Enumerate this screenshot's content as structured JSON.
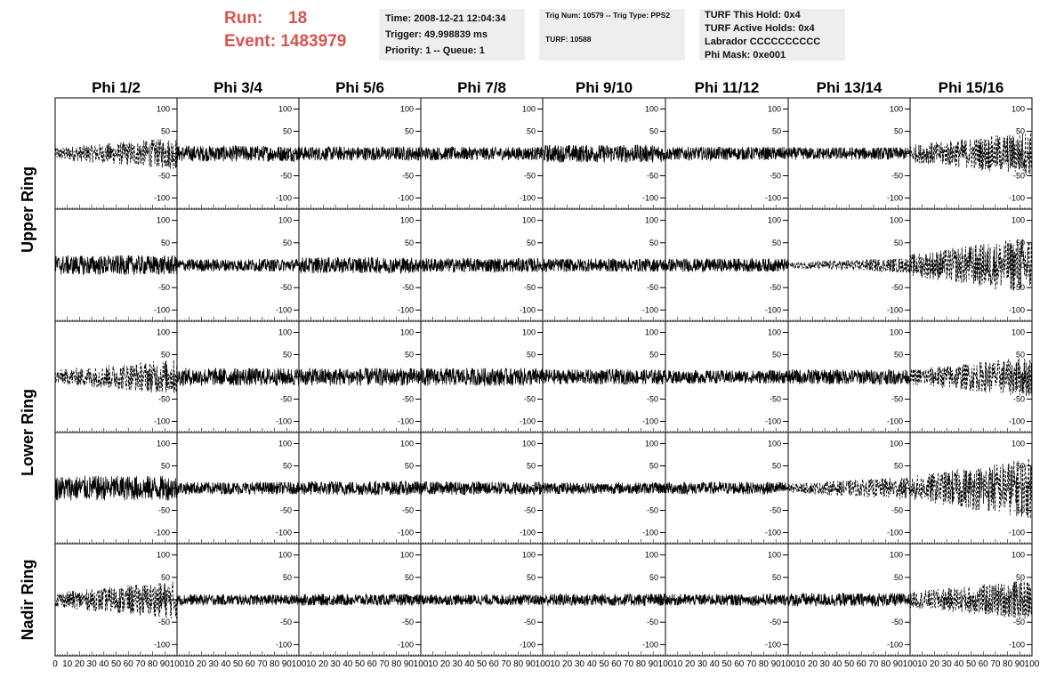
{
  "header": {
    "run_label": "Run:",
    "run_value": "18",
    "event_label": "Event:",
    "event_value": "1483979",
    "time_line": "Time: 2008-12-21 12:04:34",
    "trigger_line": "Trigger: 49.998839 ms",
    "priority_line": "Priority: 1 -- Queue: 1",
    "trig_num_line": "Trig Num: 10579 -- Trig Type: PPS2",
    "turf_line": "TURF: 10588",
    "turf_this_hold": "TURF This Hold: 0x4",
    "turf_active_holds": "TURF Active Holds: 0x4",
    "labrador": "Labrador CCCCCCCCCC",
    "phi_mask": "Phi Mask: 0xe001"
  },
  "chart_data": {
    "type": "line",
    "columns": [
      "Phi 1/2",
      "Phi 3/4",
      "Phi 5/6",
      "Phi 7/8",
      "Phi 9/10",
      "Phi 11/12",
      "Phi 13/14",
      "Phi 15/16"
    ],
    "ring_labels": [
      {
        "name": "Upper Ring",
        "rows": [
          0,
          1
        ]
      },
      {
        "name": "Lower Ring",
        "rows": [
          2,
          3
        ]
      },
      {
        "name": "Nadir Ring",
        "rows": [
          4,
          4
        ]
      }
    ],
    "xlim": [
      0,
      100
    ],
    "ylim": [
      -125,
      125
    ],
    "x_ticks": [
      0,
      10,
      20,
      30,
      40,
      50,
      60,
      70,
      80,
      90,
      100
    ],
    "x_tick_labels": [
      "0",
      "10",
      "20",
      "30",
      "40",
      "50",
      "60",
      "70",
      "80",
      "90",
      "100"
    ],
    "y_ticks": [
      -100,
      -50,
      0,
      50,
      100
    ],
    "y_tick_labels": [
      "-100",
      "-50",
      "0",
      "50",
      "100"
    ],
    "panels": [
      [
        {
          "amp": 25,
          "style": "dashed"
        },
        {
          "amp": 18,
          "style": "solid"
        },
        {
          "amp": 16,
          "style": "solid"
        },
        {
          "amp": 15,
          "style": "solid"
        },
        {
          "amp": 20,
          "style": "solid"
        },
        {
          "amp": 15,
          "style": "solid"
        },
        {
          "amp": 14,
          "style": "solid"
        },
        {
          "amp": 35,
          "style": "dashed"
        }
      ],
      [
        {
          "amp": 22,
          "style": "solid"
        },
        {
          "amp": 14,
          "style": "solid"
        },
        {
          "amp": 18,
          "style": "solid"
        },
        {
          "amp": 16,
          "style": "solid"
        },
        {
          "amp": 15,
          "style": "solid"
        },
        {
          "amp": 15,
          "style": "solid"
        },
        {
          "amp": 12,
          "style": "dashed"
        },
        {
          "amp": 45,
          "style": "dashed"
        }
      ],
      [
        {
          "amp": 28,
          "style": "dashed"
        },
        {
          "amp": 20,
          "style": "solid"
        },
        {
          "amp": 20,
          "style": "solid"
        },
        {
          "amp": 20,
          "style": "solid"
        },
        {
          "amp": 17,
          "style": "solid"
        },
        {
          "amp": 15,
          "style": "solid"
        },
        {
          "amp": 17,
          "style": "solid"
        },
        {
          "amp": 32,
          "style": "dashed"
        }
      ],
      [
        {
          "amp": 28,
          "style": "solid"
        },
        {
          "amp": 14,
          "style": "solid"
        },
        {
          "amp": 16,
          "style": "solid"
        },
        {
          "amp": 15,
          "style": "solid"
        },
        {
          "amp": 13,
          "style": "solid"
        },
        {
          "amp": 14,
          "style": "solid"
        },
        {
          "amp": 18,
          "style": "dashed"
        },
        {
          "amp": 48,
          "style": "dashed"
        }
      ],
      [
        {
          "amp": 30,
          "style": "dashed"
        },
        {
          "amp": 12,
          "style": "solid"
        },
        {
          "amp": 13,
          "style": "solid"
        },
        {
          "amp": 12,
          "style": "solid"
        },
        {
          "amp": 14,
          "style": "solid"
        },
        {
          "amp": 13,
          "style": "solid"
        },
        {
          "amp": 15,
          "style": "solid"
        },
        {
          "amp": 32,
          "style": "dashed"
        }
      ]
    ]
  }
}
